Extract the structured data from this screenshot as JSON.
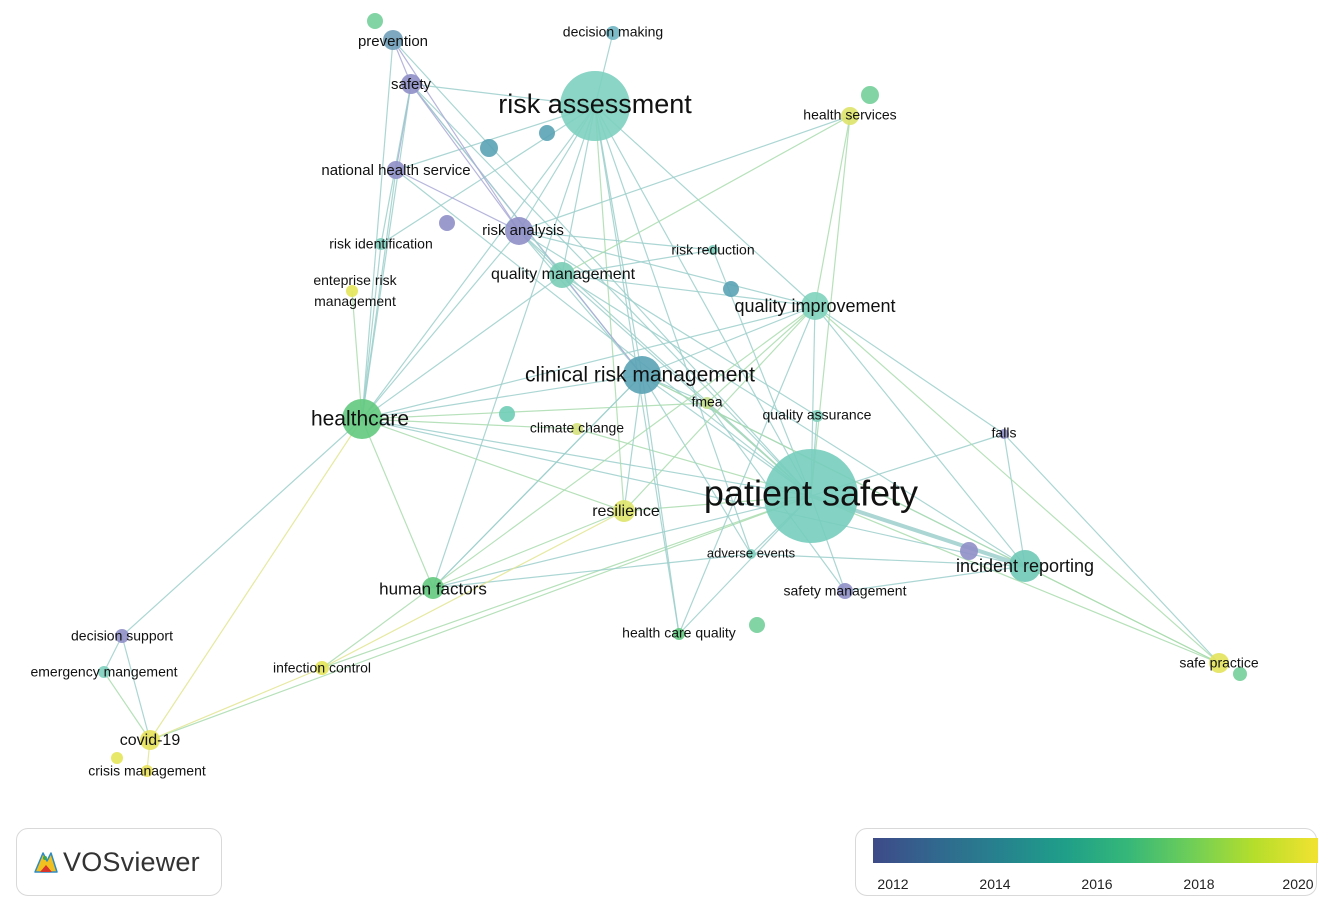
{
  "app": {
    "logo_text": "VOSviewer"
  },
  "legend": {
    "ticks": [
      "2012",
      "2014",
      "2016",
      "2018",
      "2020"
    ],
    "colors": [
      "#3e4a89",
      "#31688e",
      "#26828e",
      "#1f9e89",
      "#35b779",
      "#6ece58",
      "#b5de2b",
      "#f2e230"
    ]
  },
  "colors": {
    "edge_default": "#9ccfcb",
    "purple": "#8f8fc8",
    "teal": "#6cc6b8",
    "teal_dark": "#5aa3b5",
    "green": "#62c97e",
    "yellow": "#e4e45a"
  },
  "nodes": [
    {
      "id": "patient_safety",
      "label": "patient safety",
      "weight": 10,
      "year": 2016.4,
      "color": "#77cdbd"
    },
    {
      "id": "risk_assessment",
      "label": "risk assessment",
      "weight": 7,
      "year": 2016.2,
      "color": "#7dd0bf"
    },
    {
      "id": "clinical_risk_management",
      "label": "clinical risk management",
      "weight": 5,
      "year": 2014.9,
      "color": "#5aa3b5"
    },
    {
      "id": "healthcare",
      "label": "healthcare",
      "weight": 5,
      "year": 2017.4,
      "color": "#62c97e"
    },
    {
      "id": "incident_reporting",
      "label": "incident reporting",
      "weight": 4,
      "year": 2016.3,
      "color": "#70c9b6"
    },
    {
      "id": "quality_improvement",
      "label": "quality improvement",
      "weight": 3,
      "year": 2016.6,
      "color": "#80d3bd"
    },
    {
      "id": "quality_management",
      "label": "quality management",
      "weight": 3,
      "year": 2016.2,
      "color": "#79cdb6"
    },
    {
      "id": "risk_analysis",
      "label": "risk analysis",
      "weight": 3,
      "year": 2012.8,
      "color": "#8f8fc8"
    },
    {
      "id": "human_factors",
      "label": "human factors",
      "weight": 2,
      "year": 2017.5,
      "color": "#62c97e"
    },
    {
      "id": "resilience",
      "label": "resilience",
      "weight": 2,
      "year": 2019.6,
      "color": "#dfe46a"
    },
    {
      "id": "covid_19",
      "label": "covid-19",
      "weight": 2,
      "year": 2020.2,
      "color": "#e7e25a"
    },
    {
      "id": "safety",
      "label": "safety",
      "weight": 2,
      "year": 2012.5,
      "color": "#8f8fc8"
    },
    {
      "id": "prevention",
      "label": "prevention",
      "weight": 2,
      "year": 2014.5,
      "color": "#6f9fb9"
    },
    {
      "id": "national_health_service",
      "label": "national health service",
      "weight": 2,
      "year": 2012.5,
      "color": "#8f8fc8"
    },
    {
      "id": "risk_identification",
      "label": "risk identification",
      "weight": 1,
      "year": 2015.8,
      "color": "#7fcdbd"
    },
    {
      "id": "enterprise_risk_management",
      "label": "enteprise risk management",
      "weight": 1,
      "year": 2019.4,
      "color": "#e4e45a"
    },
    {
      "id": "risk_reduction",
      "label": "risk reduction",
      "weight": 1,
      "year": 2016.2,
      "color": "#7dcfbc"
    },
    {
      "id": "decision_making",
      "label": "decision making",
      "weight": 1,
      "year": 2015.0,
      "color": "#6fb4c2"
    },
    {
      "id": "health_services",
      "label": "health services",
      "weight": 2,
      "year": 2019.6,
      "color": "#dee36a"
    },
    {
      "id": "climate_change",
      "label": "climate change",
      "weight": 1,
      "year": 2019.0,
      "color": "#d4e17a"
    },
    {
      "id": "fmea",
      "label": "fmea",
      "weight": 1,
      "year": 2018.4,
      "color": "#c4de8a"
    },
    {
      "id": "quality_assurance",
      "label": "quality assurance",
      "weight": 1,
      "year": 2016.3,
      "color": "#80d0bd"
    },
    {
      "id": "falls",
      "label": "falls",
      "weight": 1,
      "year": 2012.6,
      "color": "#8f8fc8"
    },
    {
      "id": "adverse_events",
      "label": "adverse events",
      "weight": 1,
      "year": 2016.2,
      "color": "#7dcfbc"
    },
    {
      "id": "safety_management",
      "label": "safety management",
      "weight": 1,
      "year": 2012.6,
      "color": "#8f8fc8"
    },
    {
      "id": "health_care_quality",
      "label": "health care quality",
      "weight": 1,
      "year": 2017.6,
      "color": "#62c97e"
    },
    {
      "id": "safe_practice",
      "label": "safe practice",
      "weight": 2,
      "year": 2019.8,
      "color": "#e3e35c"
    },
    {
      "id": "decision_support",
      "label": "decision support",
      "weight": 1,
      "year": 2012.5,
      "color": "#8f8fc8"
    },
    {
      "id": "emergency_management",
      "label": "emergency mangement",
      "weight": 1,
      "year": 2016.4,
      "color": "#7dcfbc"
    },
    {
      "id": "infection_control",
      "label": "infection control",
      "weight": 1,
      "year": 2019.8,
      "color": "#e4e45a"
    },
    {
      "id": "crisis_management",
      "label": "crisis management",
      "weight": 1,
      "year": 2020.0,
      "color": "#e9e25a"
    }
  ],
  "edges": [
    [
      "patient_safety",
      "risk_assessment"
    ],
    [
      "patient_safety",
      "clinical_risk_management"
    ],
    [
      "patient_safety",
      "healthcare"
    ],
    [
      "patient_safety",
      "incident_reporting"
    ],
    [
      "patient_safety",
      "quality_improvement"
    ],
    [
      "patient_safety",
      "quality_management"
    ],
    [
      "patient_safety",
      "risk_analysis"
    ],
    [
      "patient_safety",
      "human_factors"
    ],
    [
      "patient_safety",
      "resilience"
    ],
    [
      "patient_safety",
      "safety"
    ],
    [
      "patient_safety",
      "national_health_service"
    ],
    [
      "patient_safety",
      "falls"
    ],
    [
      "patient_safety",
      "safe_practice"
    ],
    [
      "patient_safety",
      "adverse_events"
    ],
    [
      "patient_safety",
      "safety_management"
    ],
    [
      "patient_safety",
      "health_care_quality"
    ],
    [
      "patient_safety",
      "fmea"
    ],
    [
      "patient_safety",
      "quality_assurance"
    ],
    [
      "patient_safety",
      "health_services"
    ],
    [
      "patient_safety",
      "risk_reduction"
    ],
    [
      "patient_safety",
      "covid_19"
    ],
    [
      "patient_safety",
      "infection_control"
    ],
    [
      "patient_safety",
      "climate_change"
    ],
    [
      "patient_safety",
      "prevention"
    ],
    [
      "risk_assessment",
      "clinical_risk_management"
    ],
    [
      "risk_assessment",
      "healthcare"
    ],
    [
      "risk_assessment",
      "risk_analysis"
    ],
    [
      "risk_assessment",
      "quality_improvement"
    ],
    [
      "risk_assessment",
      "quality_management"
    ],
    [
      "risk_assessment",
      "safety"
    ],
    [
      "risk_assessment",
      "national_health_service"
    ],
    [
      "risk_assessment",
      "human_factors"
    ],
    [
      "risk_assessment",
      "risk_identification"
    ],
    [
      "risk_assessment",
      "resilience"
    ],
    [
      "risk_assessment",
      "adverse_events"
    ],
    [
      "risk_assessment",
      "health_care_quality"
    ],
    [
      "clinical_risk_management",
      "healthcare"
    ],
    [
      "clinical_risk_management",
      "quality_management"
    ],
    [
      "clinical_risk_management",
      "risk_analysis"
    ],
    [
      "clinical_risk_management",
      "incident_reporting"
    ],
    [
      "clinical_risk_management",
      "quality_improvement"
    ],
    [
      "clinical_risk_management",
      "safety"
    ],
    [
      "clinical_risk_management",
      "human_factors"
    ],
    [
      "clinical_risk_management",
      "fmea"
    ],
    [
      "clinical_risk_management",
      "adverse_events"
    ],
    [
      "clinical_risk_management",
      "health_care_quality"
    ],
    [
      "clinical_risk_management",
      "resilience"
    ],
    [
      "healthcare",
      "quality_management"
    ],
    [
      "healthcare",
      "risk_analysis"
    ],
    [
      "healthcare",
      "human_factors"
    ],
    [
      "healthcare",
      "covid_19"
    ],
    [
      "healthcare",
      "decision_support"
    ],
    [
      "healthcare",
      "enterprise_risk_management"
    ],
    [
      "healthcare",
      "risk_identification"
    ],
    [
      "healthcare",
      "safety"
    ],
    [
      "healthcare",
      "national_health_service"
    ],
    [
      "healthcare",
      "resilience"
    ],
    [
      "healthcare",
      "climate_change"
    ],
    [
      "healthcare",
      "quality_improvement"
    ],
    [
      "healthcare",
      "prevention"
    ],
    [
      "healthcare",
      "incident_reporting"
    ],
    [
      "healthcare",
      "fmea"
    ],
    [
      "incident_reporting",
      "quality_improvement"
    ],
    [
      "incident_reporting",
      "falls"
    ],
    [
      "incident_reporting",
      "safe_practice"
    ],
    [
      "incident_reporting",
      "safety_management"
    ],
    [
      "incident_reporting",
      "adverse_events"
    ],
    [
      "incident_reporting",
      "quality_management"
    ],
    [
      "quality_improvement",
      "quality_management"
    ],
    [
      "quality_improvement",
      "health_services"
    ],
    [
      "quality_improvement",
      "falls"
    ],
    [
      "quality_improvement",
      "risk_analysis"
    ],
    [
      "quality_improvement",
      "health_care_quality"
    ],
    [
      "quality_improvement",
      "safe_practice"
    ],
    [
      "quality_management",
      "risk_analysis"
    ],
    [
      "quality_management",
      "safety"
    ],
    [
      "quality_management",
      "risk_reduction"
    ],
    [
      "risk_analysis",
      "safety"
    ],
    [
      "risk_analysis",
      "national_health_service"
    ],
    [
      "risk_analysis",
      "risk_reduction"
    ],
    [
      "risk_analysis",
      "prevention"
    ],
    [
      "risk_analysis",
      "health_services"
    ],
    [
      "risk_analysis",
      "quality_assurance"
    ],
    [
      "safety",
      "prevention"
    ],
    [
      "safety",
      "national_health_service"
    ],
    [
      "safety",
      "risk_identification"
    ],
    [
      "human_factors",
      "resilience"
    ],
    [
      "human_factors",
      "adverse_events"
    ],
    [
      "human_factors",
      "clinical_risk_management"
    ],
    [
      "covid_19",
      "crisis_management"
    ],
    [
      "covid_19",
      "emergency_management"
    ],
    [
      "covid_19",
      "infection_control"
    ],
    [
      "covid_19",
      "decision_support"
    ],
    [
      "infection_control",
      "resilience"
    ],
    [
      "infection_control",
      "quality_improvement"
    ],
    [
      "decision_support",
      "emergency_management"
    ],
    [
      "decision_making",
      "risk_assessment"
    ],
    [
      "health_services",
      "quality_management"
    ],
    [
      "resilience",
      "quality_improvement"
    ],
    [
      "falls",
      "safe_practice"
    ],
    [
      "safe_practice",
      "clinical_risk_management"
    ],
    [
      "safety_management",
      "fmea"
    ],
    [
      "fmea",
      "quality_improvement"
    ]
  ]
}
